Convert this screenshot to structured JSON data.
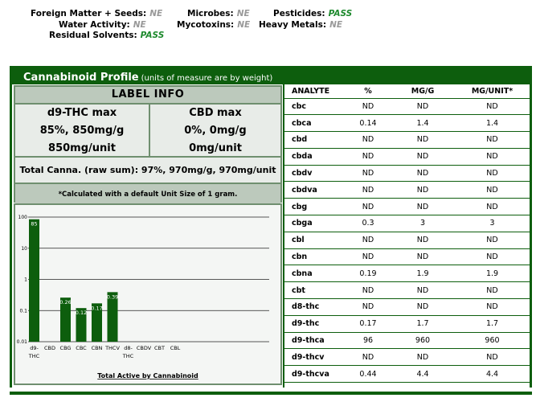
{
  "summary": {
    "foreign_matter": {
      "label": "Foreign Matter + Seeds:",
      "value": "NE"
    },
    "water_activity": {
      "label": "Water Activity:",
      "value": "NE"
    },
    "residual_solvents": {
      "label": "Residual Solvents:",
      "value": "PASS"
    },
    "microbes": {
      "label": "Microbes:",
      "value": "NE"
    },
    "mycotoxins": {
      "label": "Mycotoxins:",
      "value": "NE"
    },
    "pesticides": {
      "label": "Pesticides:",
      "value": "PASS"
    },
    "heavy_metals": {
      "label": "Heavy Metals:",
      "value": "NE"
    }
  },
  "profile": {
    "title": "Cannabinoid Profile",
    "subtitle": "(units of measure are by weight)"
  },
  "label_info": {
    "title": "LABEL INFO",
    "thc": {
      "heading": "d9-THC max",
      "line1": "85%, 850mg/g",
      "line2": "850mg/unit"
    },
    "cbd": {
      "heading": "CBD max",
      "line1": "0%, 0mg/g",
      "line2": "0mg/unit"
    },
    "total": "Total Canna. (raw sum): 97%, 970mg/g, 970mg/unit",
    "note": "*Calculated with a default Unit Size of 1 gram."
  },
  "table": {
    "headers": [
      "ANALYTE",
      "%",
      "MG/G",
      "MG/UNIT*"
    ],
    "rows": [
      [
        "cbc",
        "ND",
        "ND",
        "ND"
      ],
      [
        "cbca",
        "0.14",
        "1.4",
        "1.4"
      ],
      [
        "cbd",
        "ND",
        "ND",
        "ND"
      ],
      [
        "cbda",
        "ND",
        "ND",
        "ND"
      ],
      [
        "cbdv",
        "ND",
        "ND",
        "ND"
      ],
      [
        "cbdva",
        "ND",
        "ND",
        "ND"
      ],
      [
        "cbg",
        "ND",
        "ND",
        "ND"
      ],
      [
        "cbga",
        "0.3",
        "3",
        "3"
      ],
      [
        "cbl",
        "ND",
        "ND",
        "ND"
      ],
      [
        "cbn",
        "ND",
        "ND",
        "ND"
      ],
      [
        "cbna",
        "0.19",
        "1.9",
        "1.9"
      ],
      [
        "cbt",
        "ND",
        "ND",
        "ND"
      ],
      [
        "d8-thc",
        "ND",
        "ND",
        "ND"
      ],
      [
        "d9-thc",
        "0.17",
        "1.7",
        "1.7"
      ],
      [
        "d9-thca",
        "96",
        "960",
        "960"
      ],
      [
        "d9-thcv",
        "ND",
        "ND",
        "ND"
      ],
      [
        "d9-thcva",
        "0.44",
        "4.4",
        "4.4"
      ]
    ]
  },
  "colors": {
    "brand_green": "#0d5e0d",
    "pass_green": "#1e8a2e",
    "ne_gray": "#999999"
  },
  "chart_data": {
    "type": "bar",
    "scale": "log",
    "title": "Total Active by Cannabinoid",
    "categories": [
      [
        "d9-",
        "THC"
      ],
      [
        "CBD"
      ],
      [
        "CBG"
      ],
      [
        "CBC"
      ],
      [
        "CBN"
      ],
      [
        "THCV"
      ],
      [
        "d8-",
        "THC"
      ],
      [
        "CBDV"
      ],
      [
        "CBT"
      ],
      [
        "CBL"
      ]
    ],
    "values": [
      85,
      null,
      0.26,
      0.12,
      0.17,
      0.39,
      null,
      null,
      null,
      null
    ],
    "labels": [
      "85",
      "",
      "0.26",
      "0.12",
      "0.17",
      "0.39",
      "",
      "",
      "",
      ""
    ],
    "ylim": [
      0.01,
      100
    ],
    "yticks": [
      0.01,
      0.1,
      1,
      10,
      100
    ],
    "ytick_labels": [
      "0.01",
      "0.1",
      "1",
      "10",
      "100"
    ],
    "grid": true
  }
}
